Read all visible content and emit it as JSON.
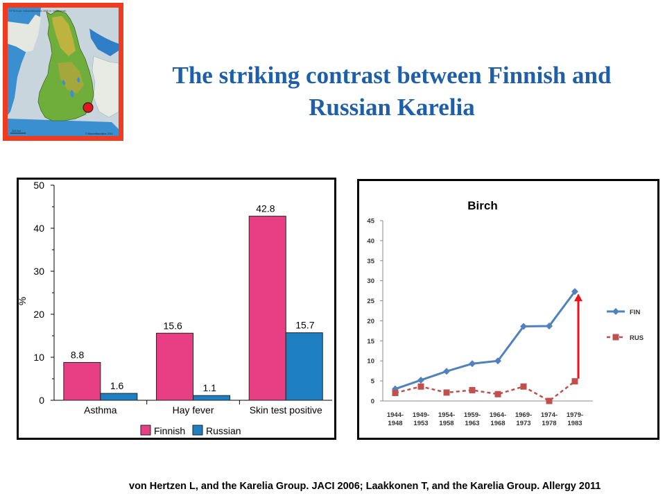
{
  "title_line1": "The striking contrast between Finnish and",
  "title_line2": "Russian Karelia",
  "citation": "von Hertzen L, and the Karelia Group. JACI 2006; Laakkonen T, and the Karelia Group. Allergy 2011",
  "colors": {
    "title": "#1f5fa8",
    "finnish": "#e83e84",
    "russian": "#1d7fc1",
    "fin_line": "#4f81bd",
    "rus_line": "#c0504d",
    "arrow": "#e8141c",
    "map_frame": "#ef3b1f"
  },
  "map": {
    "header": "HYTA Kuva: erikoismittauksen 2000 m: valtakunnan",
    "scale_label": "200 km",
    "credit": "© Maanmittauslaitos 2014"
  },
  "chart_data": [
    {
      "type": "bar",
      "categories": [
        "Asthma",
        "Hay fever",
        "Skin test positive"
      ],
      "series": [
        {
          "name": "Finnish",
          "values": [
            8.8,
            15.6,
            42.8
          ]
        },
        {
          "name": "Russian",
          "values": [
            1.6,
            1.1,
            15.7
          ]
        }
      ],
      "value_labels": {
        "Finnish": [
          "8.8",
          "15.6",
          "42.8"
        ],
        "Russian": [
          "1.6",
          "1.1",
          "15.7"
        ]
      },
      "ylabel": "%",
      "ylim": [
        0,
        50
      ],
      "yticks": [
        "0",
        "10",
        "20",
        "30",
        "40",
        "50"
      ],
      "legend": {
        "position": "bottom"
      }
    },
    {
      "type": "line",
      "title": "Birch",
      "categories": [
        "1944-1948",
        "1949-1953",
        "1954-1958",
        "1959-1963",
        "1964-1968",
        "1969-1973",
        "1974-1978",
        "1979-1983"
      ],
      "category_lines": [
        [
          "1944-",
          "1948"
        ],
        [
          "1949-",
          "1953"
        ],
        [
          "1954-",
          "1958"
        ],
        [
          "1959-",
          "1963"
        ],
        [
          "1964-",
          "1968"
        ],
        [
          "1969-",
          "1973"
        ],
        [
          "1974-",
          "1978"
        ],
        [
          "1979-",
          "1983"
        ]
      ],
      "series": [
        {
          "name": "FIN",
          "values": [
            3,
            5.2,
            7.4,
            9.3,
            10,
            18.6,
            18.7,
            27.3
          ]
        },
        {
          "name": "RUS",
          "values": [
            2,
            3.6,
            2.1,
            2.7,
            1.7,
            3.6,
            0,
            4.9
          ]
        }
      ],
      "ylim": [
        0,
        45
      ],
      "yticks": [
        "0",
        "5",
        "10",
        "15",
        "20",
        "25",
        "30",
        "35",
        "40",
        "45"
      ],
      "legend": {
        "position": "right"
      }
    }
  ]
}
